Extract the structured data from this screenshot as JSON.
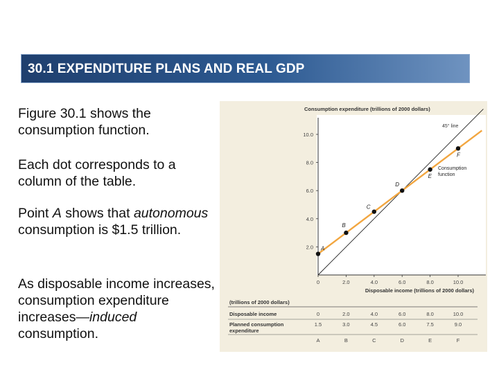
{
  "header": {
    "title": "30.1 EXPENDITURE PLANS AND REAL GDP"
  },
  "body": {
    "p1": "Figure 30.1 shows the consumption function.",
    "p2": "Each dot corresponds to a column of the table.",
    "p3": {
      "a": "Point ",
      "b": "A",
      "c": " shows that ",
      "d": "autonomous",
      "e": " consumption is $1.5 trillion."
    },
    "p4": {
      "a": "As disposable income increases, consumption expenditure increases—",
      "b": "induced",
      "c": " consumption."
    }
  },
  "chart_data": {
    "type": "line",
    "ylabel": "Consumption expenditure (trillions of 2000 dollars)",
    "xlabel": "Disposable income (trillions of 2000 dollars)",
    "xlim": [
      0,
      10
    ],
    "ylim": [
      0,
      10
    ],
    "x_ticks": [
      "0",
      "2.0",
      "4.0",
      "6.0",
      "8.0",
      "10.0"
    ],
    "y_ticks": [
      "2.0",
      "4.0",
      "6.0",
      "8.0",
      "10.0"
    ],
    "series": [
      {
        "name": "Consumption function",
        "x": [
          0,
          2,
          4,
          6,
          8,
          10
        ],
        "y": [
          1.5,
          3.0,
          4.5,
          6.0,
          7.5,
          9.0
        ],
        "point_labels": [
          "A",
          "B",
          "C",
          "D",
          "E",
          "F"
        ],
        "color": "#f2a640"
      },
      {
        "name": "45° line",
        "x": [
          0,
          10
        ],
        "y": [
          0,
          10
        ],
        "color": "#222222"
      }
    ],
    "grid": false
  },
  "table": {
    "units": "(trillions of 2000 dollars)",
    "rows": [
      {
        "label": "Disposable income",
        "values": [
          "0",
          "2.0",
          "4.0",
          "6.0",
          "8.0",
          "10.0"
        ]
      },
      {
        "label": "Planned consumption expenditure",
        "values": [
          "1.5",
          "3.0",
          "4.5",
          "6.0",
          "7.5",
          "9.0"
        ]
      }
    ],
    "letters": [
      "A",
      "B",
      "C",
      "D",
      "E",
      "F"
    ]
  }
}
